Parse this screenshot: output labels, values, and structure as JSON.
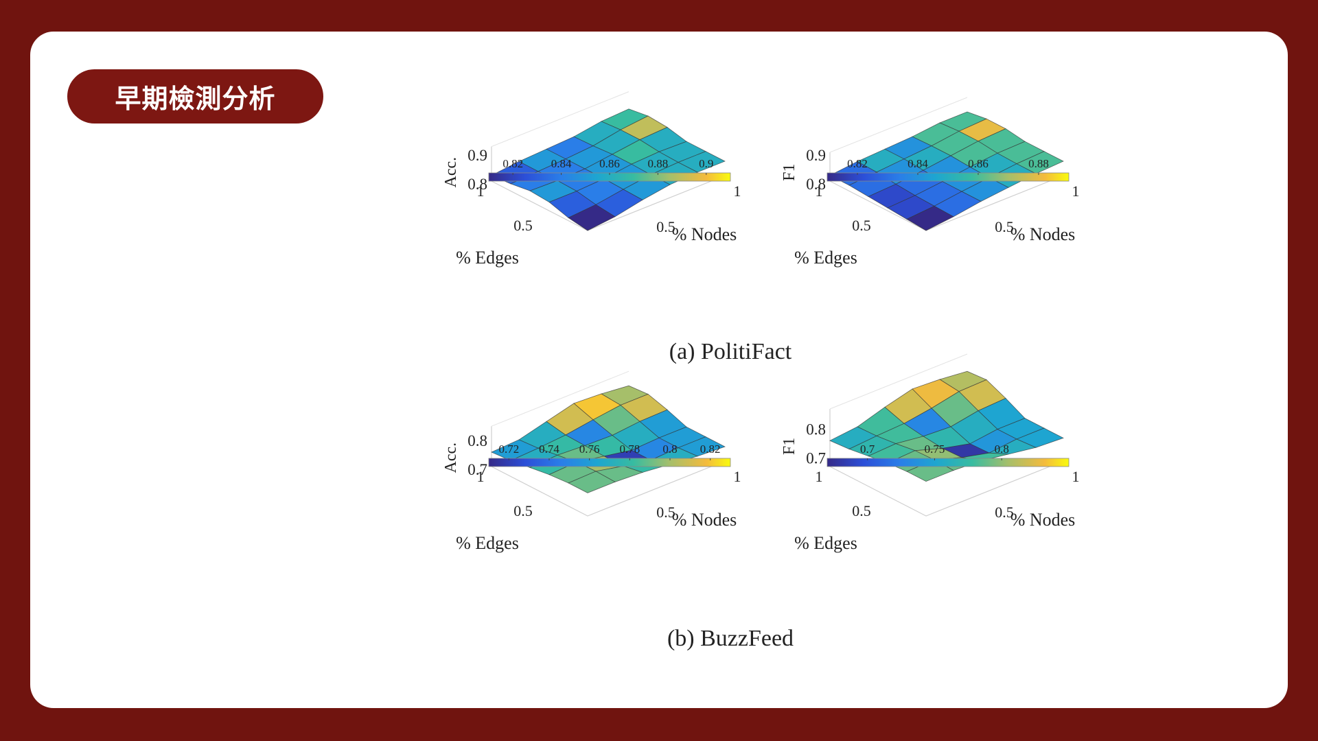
{
  "slide": {
    "title": "早期檢測分析",
    "colors": {
      "frame": "#70140f",
      "card": "#ffffff",
      "pill": "#7d1712"
    }
  },
  "captions": {
    "a": "(a) PolitiFact",
    "b": "(b) BuzzFeed"
  },
  "chart_data": [
    {
      "type": "surface3d",
      "name": "a-acc",
      "zlabel": "Acc.",
      "xlabel": "% Edges",
      "ylabel": "% Nodes",
      "x_ticks": [
        "0.5",
        "1"
      ],
      "y_ticks": [
        "0.5",
        "1"
      ],
      "z_ticks": [
        "0.8",
        "0.9"
      ],
      "colorbar_ticks": [
        "0.82",
        "0.84",
        "0.86",
        "0.88",
        "0.9"
      ],
      "colorbar_range": [
        0.81,
        0.91
      ],
      "grid_size": [
        5,
        5
      ],
      "values": [
        [
          0.83,
          0.85,
          0.84,
          0.86,
          0.87
        ],
        [
          0.84,
          0.84,
          0.85,
          0.86,
          0.89
        ],
        [
          0.85,
          0.84,
          0.85,
          0.87,
          0.86
        ],
        [
          0.83,
          0.84,
          0.85,
          0.86,
          0.86
        ],
        [
          0.81,
          0.83,
          0.85,
          0.86,
          0.86
        ]
      ]
    },
    {
      "type": "surface3d",
      "name": "a-f1",
      "zlabel": "F1",
      "xlabel": "% Edges",
      "ylabel": "% Nodes",
      "x_ticks": [
        "0.5",
        "1"
      ],
      "y_ticks": [
        "0.5",
        "1"
      ],
      "z_ticks": [
        "0.8",
        "0.9"
      ],
      "colorbar_ticks": [
        "0.82",
        "0.84",
        "0.86",
        "0.88"
      ],
      "colorbar_range": [
        0.81,
        0.89
      ],
      "grid_size": [
        5,
        5
      ],
      "values": [
        [
          0.83,
          0.85,
          0.84,
          0.86,
          0.86
        ],
        [
          0.83,
          0.84,
          0.85,
          0.86,
          0.88
        ],
        [
          0.82,
          0.83,
          0.84,
          0.86,
          0.86
        ],
        [
          0.82,
          0.83,
          0.84,
          0.85,
          0.86
        ],
        [
          0.81,
          0.83,
          0.84,
          0.85,
          0.86
        ]
      ]
    },
    {
      "type": "surface3d",
      "name": "b-acc",
      "zlabel": "Acc.",
      "xlabel": "% Edges",
      "ylabel": "% Nodes",
      "x_ticks": [
        "0.5",
        "1"
      ],
      "y_ticks": [
        "0.5",
        "1"
      ],
      "z_ticks": [
        "0.7",
        "0.8"
      ],
      "colorbar_ticks": [
        "0.72",
        "0.74",
        "0.76",
        "0.78",
        "0.8",
        "0.82"
      ],
      "colorbar_range": [
        0.71,
        0.83
      ],
      "grid_size": [
        5,
        5
      ],
      "values": [
        [
          0.76,
          0.77,
          0.81,
          0.82,
          0.8
        ],
        [
          0.77,
          0.78,
          0.75,
          0.79,
          0.81
        ],
        [
          0.78,
          0.79,
          0.78,
          0.77,
          0.76
        ],
        [
          0.79,
          0.8,
          0.72,
          0.75,
          0.76
        ],
        [
          0.79,
          0.79,
          0.78,
          0.77,
          0.76
        ]
      ]
    },
    {
      "type": "surface3d",
      "name": "b-f1",
      "zlabel": "F1",
      "xlabel": "% Edges",
      "ylabel": "% Nodes",
      "x_ticks": [
        "0.5",
        "1"
      ],
      "y_ticks": [
        "0.5",
        "1"
      ],
      "z_ticks": [
        "0.7",
        "0.8"
      ],
      "colorbar_ticks": [
        "0.7",
        "0.75",
        "0.8"
      ],
      "colorbar_range": [
        0.67,
        0.85
      ],
      "grid_size": [
        5,
        5
      ],
      "values": [
        [
          0.76,
          0.78,
          0.82,
          0.83,
          0.81
        ],
        [
          0.77,
          0.78,
          0.73,
          0.79,
          0.82
        ],
        [
          0.78,
          0.79,
          0.77,
          0.76,
          0.75
        ],
        [
          0.79,
          0.8,
          0.68,
          0.74,
          0.75
        ],
        [
          0.79,
          0.79,
          0.78,
          0.76,
          0.75
        ]
      ]
    }
  ]
}
